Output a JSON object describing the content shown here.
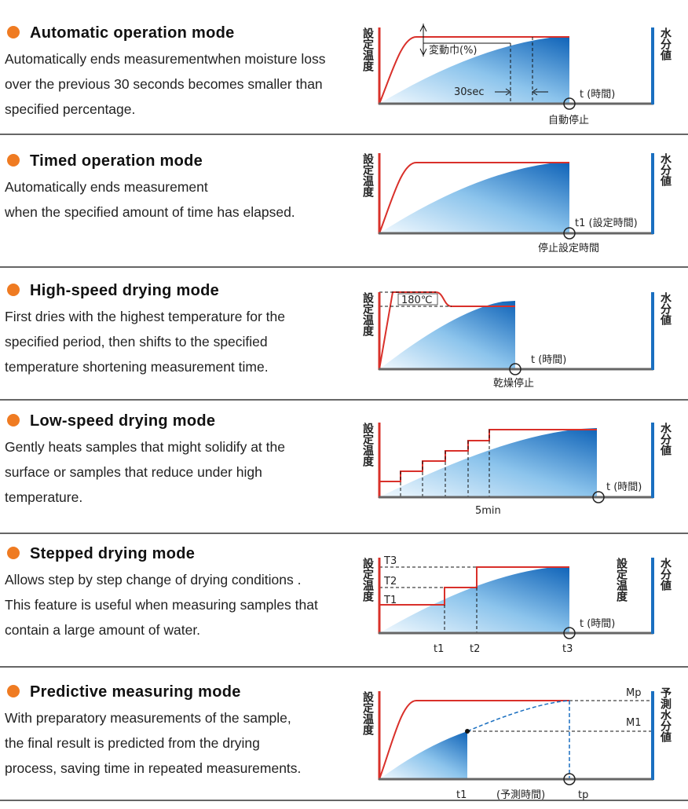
{
  "sections": [
    {
      "title": "Automatic operation mode",
      "lines": [
        "Automatically ends measurementwhen moisture loss",
        "over the previous 30 seconds becomes smaller than",
        "specified percentage."
      ],
      "diagram": {
        "y_axis": "設定温度",
        "y2_axis": "水分値",
        "labels": [
          "変動巾(%)",
          "30sec",
          "t (時間)",
          "自動停止"
        ]
      }
    },
    {
      "title": "Timed operation mode",
      "lines": [
        "Automatically ends measurement",
        "when the specified amount of time has elapsed."
      ],
      "diagram": {
        "y_axis": "設定温度",
        "y2_axis": "水分値",
        "labels": [
          "t1 (設定時間)",
          "停止設定時間"
        ]
      }
    },
    {
      "title": "High-speed drying mode",
      "lines": [
        "First dries with the highest temperature for the",
        "specified period, then shifts to the specified",
        "temperature shortening measurement time."
      ],
      "diagram": {
        "y_axis": "設定温度",
        "y2_axis": "水分値",
        "labels": [
          "180℃",
          "t (時間)",
          "乾燥停止"
        ]
      }
    },
    {
      "title": "Low-speed drying mode",
      "lines": [
        "Gently heats samples that might solidify at the",
        "surface or samples that reduce under high",
        "temperature."
      ],
      "diagram": {
        "y_axis": "設定温度",
        "y2_axis": "水分値",
        "labels": [
          "t (時間)",
          "5min"
        ]
      }
    },
    {
      "title": "Stepped drying mode",
      "lines": [
        "Allows step by step change of drying conditions .",
        "This feature is useful when measuring samples that",
        "contain a large amount of water."
      ],
      "diagram": {
        "y_axis": "設定温度",
        "y2_axis": "水分値",
        "right_axis": "設定温度",
        "labels": [
          "T3",
          "T2",
          "T1",
          "t (時間)",
          "t1",
          "t2",
          "t3"
        ]
      }
    },
    {
      "title": "Predictive measuring mode",
      "lines": [
        "With preparatory measurements of the sample,",
        "the final result is predicted from the drying",
        "process, saving time in repeated measurements."
      ],
      "diagram": {
        "y_axis": "設定温度",
        "y2_axis": "予測水分値",
        "labels": [
          "Mp",
          "M1",
          "t1",
          "(予測時間)",
          "tp"
        ]
      }
    }
  ]
}
